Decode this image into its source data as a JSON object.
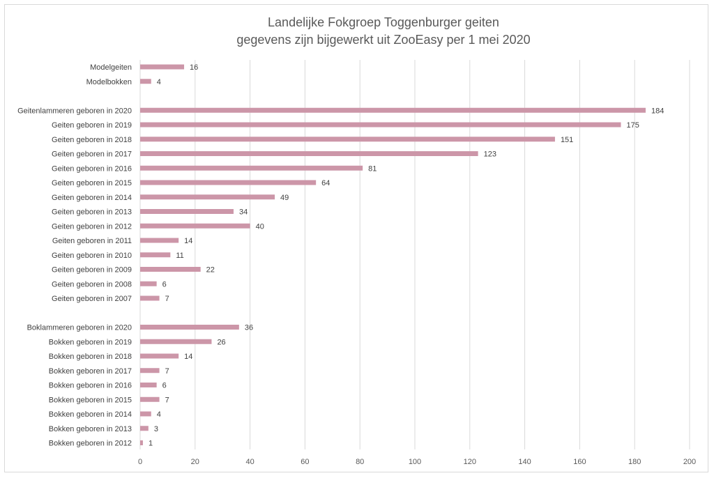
{
  "chart_data": {
    "type": "bar",
    "orientation": "horizontal",
    "title": "Landelijke Fokgroep Toggenburger geiten",
    "subtitle": "gegevens zijn bijgewerkt uit ZooEasy per 1 mei 2020",
    "xlabel": "",
    "ylabel": "",
    "xlim": [
      0,
      200
    ],
    "x_ticks": [
      "0",
      "20",
      "40",
      "60",
      "80",
      "100",
      "120",
      "140",
      "160",
      "180",
      "200"
    ],
    "grid": true,
    "legend": "none",
    "bar_color": "#cc96a8",
    "categories": [
      "Modelgeiten",
      "Modelbokken",
      "",
      "Geitenlammeren geboren in 2020",
      "Geiten geboren in 2019",
      "Geiten geboren in 2018",
      "Geiten geboren in 2017",
      "Geiten geboren in 2016",
      "Geiten geboren in 2015",
      "Geiten geboren in 2014",
      "Geiten geboren in 2013",
      "Geiten geboren in 2012",
      "Geiten geboren in 2011",
      "Geiten geboren in 2010",
      "Geiten geboren in 2009",
      "Geiten geboren in 2008",
      "Geiten geboren in 2007",
      "",
      "Boklammeren geboren in 2020",
      "Bokken geboren in 2019",
      "Bokken geboren in 2018",
      "Bokken geboren in 2017",
      "Bokken geboren in 2016",
      "Bokken geboren in 2015",
      "Bokken geboren in 2014",
      "Bokken geboren in 2013",
      "Bokken geboren in 2012"
    ],
    "values": [
      16,
      4,
      null,
      184,
      175,
      151,
      123,
      81,
      64,
      49,
      34,
      40,
      14,
      11,
      22,
      6,
      7,
      null,
      36,
      26,
      14,
      7,
      6,
      7,
      4,
      3,
      1
    ]
  }
}
